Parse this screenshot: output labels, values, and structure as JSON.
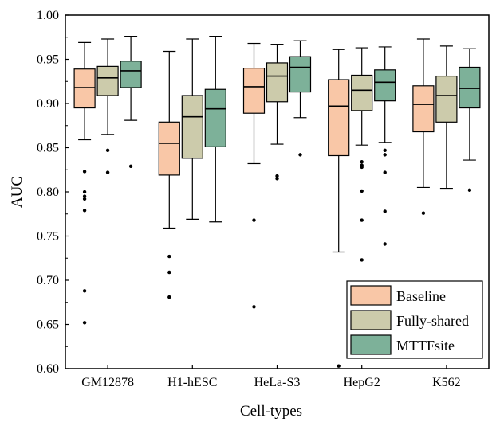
{
  "chart_data": {
    "type": "box",
    "title": "",
    "xlabel": "Cell-types",
    "ylabel": "AUC",
    "ylim": [
      0.6,
      1.0
    ],
    "yticks": [
      "0.60",
      "0.65",
      "0.70",
      "0.75",
      "0.80",
      "0.85",
      "0.90",
      "0.95",
      "1.00"
    ],
    "categories": [
      "GM12878",
      "H1-hESC",
      "HeLa-S3",
      "HepG2",
      "K562"
    ],
    "legend_position": "bottom-right",
    "grid": false,
    "series": [
      {
        "name": "Baseline",
        "color": "#f9c7a7",
        "boxes": [
          {
            "whisker_low": 0.859,
            "q1": 0.895,
            "median": 0.918,
            "q3": 0.939,
            "whisker_high": 0.969,
            "outliers": [
              0.823,
              0.8,
              0.795,
              0.792,
              0.779,
              0.688,
              0.652
            ]
          },
          {
            "whisker_low": 0.759,
            "q1": 0.819,
            "median": 0.855,
            "q3": 0.879,
            "whisker_high": 0.959,
            "outliers": [
              0.727,
              0.709,
              0.681
            ]
          },
          {
            "whisker_low": 0.832,
            "q1": 0.889,
            "median": 0.919,
            "q3": 0.94,
            "whisker_high": 0.968,
            "outliers": [
              0.768,
              0.67
            ]
          },
          {
            "whisker_low": 0.732,
            "q1": 0.841,
            "median": 0.897,
            "q3": 0.927,
            "whisker_high": 0.961,
            "outliers": [
              0.603
            ]
          },
          {
            "whisker_low": 0.805,
            "q1": 0.868,
            "median": 0.899,
            "q3": 0.92,
            "whisker_high": 0.973,
            "outliers": [
              0.776,
              0.697
            ]
          }
        ]
      },
      {
        "name": "Fully-shared",
        "color": "#cccbab",
        "boxes": [
          {
            "whisker_low": 0.865,
            "q1": 0.909,
            "median": 0.929,
            "q3": 0.942,
            "whisker_high": 0.973,
            "outliers": [
              0.847,
              0.822
            ]
          },
          {
            "whisker_low": 0.769,
            "q1": 0.838,
            "median": 0.885,
            "q3": 0.909,
            "whisker_high": 0.973,
            "outliers": []
          },
          {
            "whisker_low": 0.854,
            "q1": 0.902,
            "median": 0.931,
            "q3": 0.946,
            "whisker_high": 0.967,
            "outliers": [
              0.818,
              0.815
            ]
          },
          {
            "whisker_low": 0.853,
            "q1": 0.892,
            "median": 0.915,
            "q3": 0.932,
            "whisker_high": 0.963,
            "outliers": [
              0.834,
              0.83,
              0.828,
              0.801,
              0.768,
              0.723
            ]
          },
          {
            "whisker_low": 0.804,
            "q1": 0.879,
            "median": 0.909,
            "q3": 0.931,
            "whisker_high": 0.965,
            "outliers": []
          }
        ]
      },
      {
        "name": "MTTFsite",
        "color": "#7db199",
        "boxes": [
          {
            "whisker_low": 0.881,
            "q1": 0.918,
            "median": 0.937,
            "q3": 0.948,
            "whisker_high": 0.976,
            "outliers": [
              0.829
            ]
          },
          {
            "whisker_low": 0.766,
            "q1": 0.851,
            "median": 0.894,
            "q3": 0.916,
            "whisker_high": 0.976,
            "outliers": []
          },
          {
            "whisker_low": 0.884,
            "q1": 0.913,
            "median": 0.941,
            "q3": 0.953,
            "whisker_high": 0.971,
            "outliers": [
              0.842
            ]
          },
          {
            "whisker_low": 0.856,
            "q1": 0.903,
            "median": 0.924,
            "q3": 0.938,
            "whisker_high": 0.964,
            "outliers": [
              0.847,
              0.842,
              0.822,
              0.778,
              0.741
            ]
          },
          {
            "whisker_low": 0.836,
            "q1": 0.895,
            "median": 0.917,
            "q3": 0.941,
            "whisker_high": 0.962,
            "outliers": [
              0.802
            ]
          }
        ]
      }
    ]
  }
}
